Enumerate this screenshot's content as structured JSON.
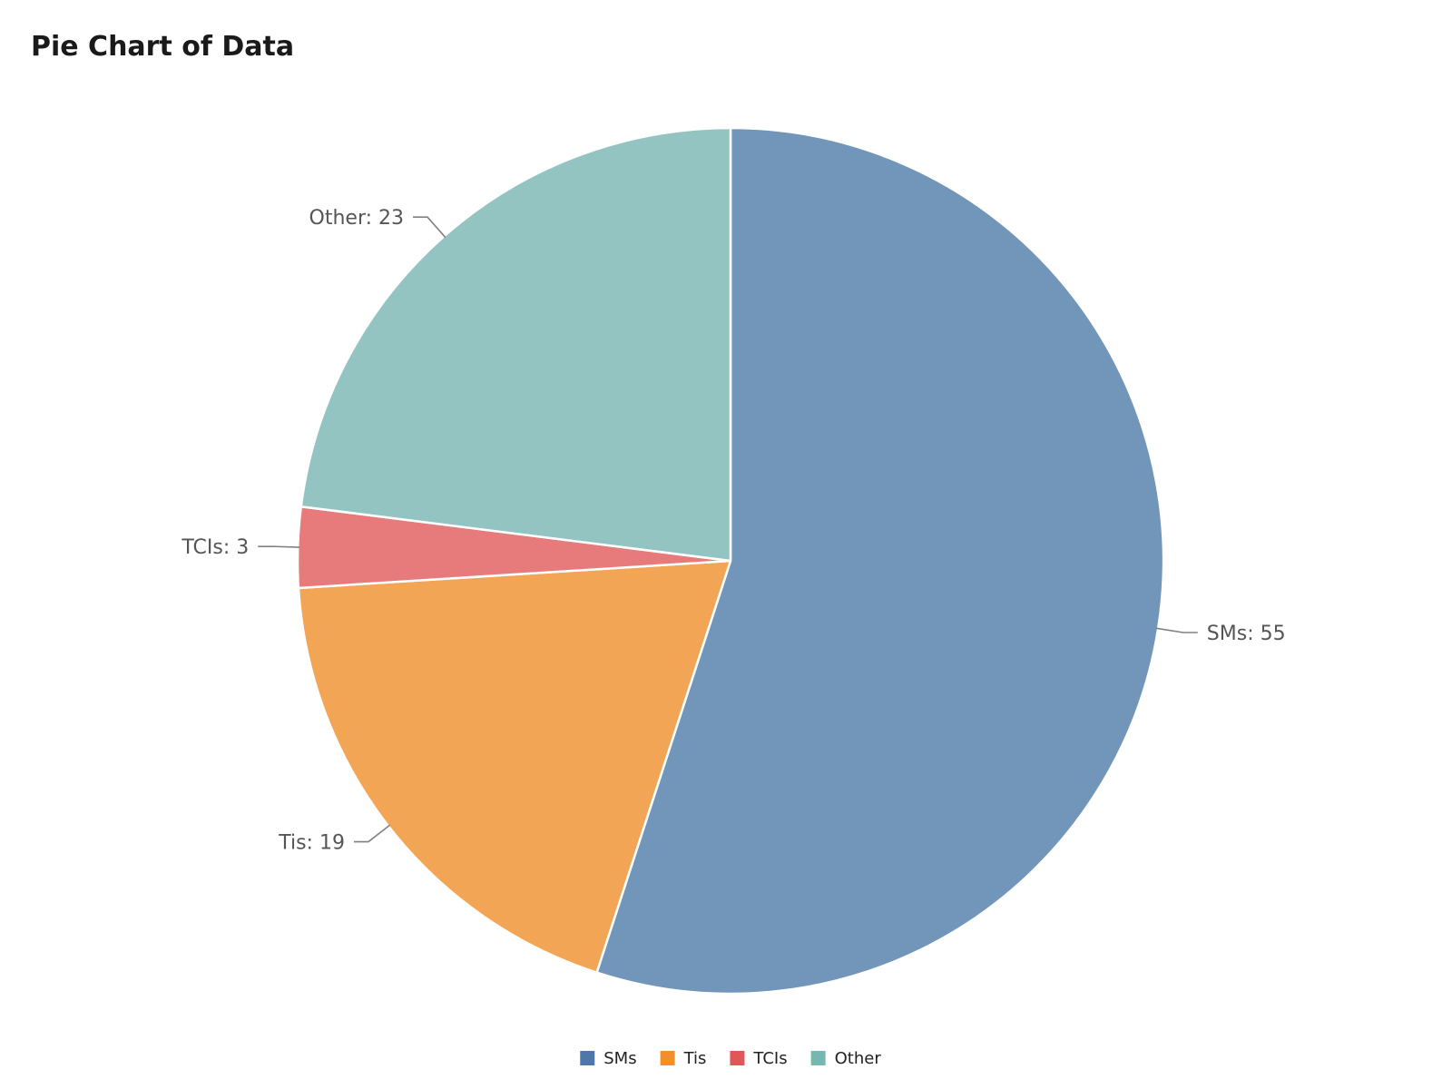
{
  "title": "Pie Chart of Data",
  "chart_data": {
    "type": "pie",
    "title": "Pie Chart of Data",
    "categories": [
      "SMs",
      "Tis",
      "TCIs",
      "Other"
    ],
    "values": [
      55,
      19,
      3,
      23
    ],
    "slice_labels": [
      "SMs: 55",
      "Tis: 19",
      "TCIs: 3",
      "Other: 23"
    ],
    "slice_colors": [
      "#7196ba",
      "#f3a556",
      "#e77a7a",
      "#93c4c1"
    ],
    "legend_colors": [
      "#4e79a7",
      "#f28e2b",
      "#e15759",
      "#76b7b2"
    ],
    "legend_position": "bottom-center",
    "start_angle": "12 o'clock",
    "direction": "clockwise"
  }
}
